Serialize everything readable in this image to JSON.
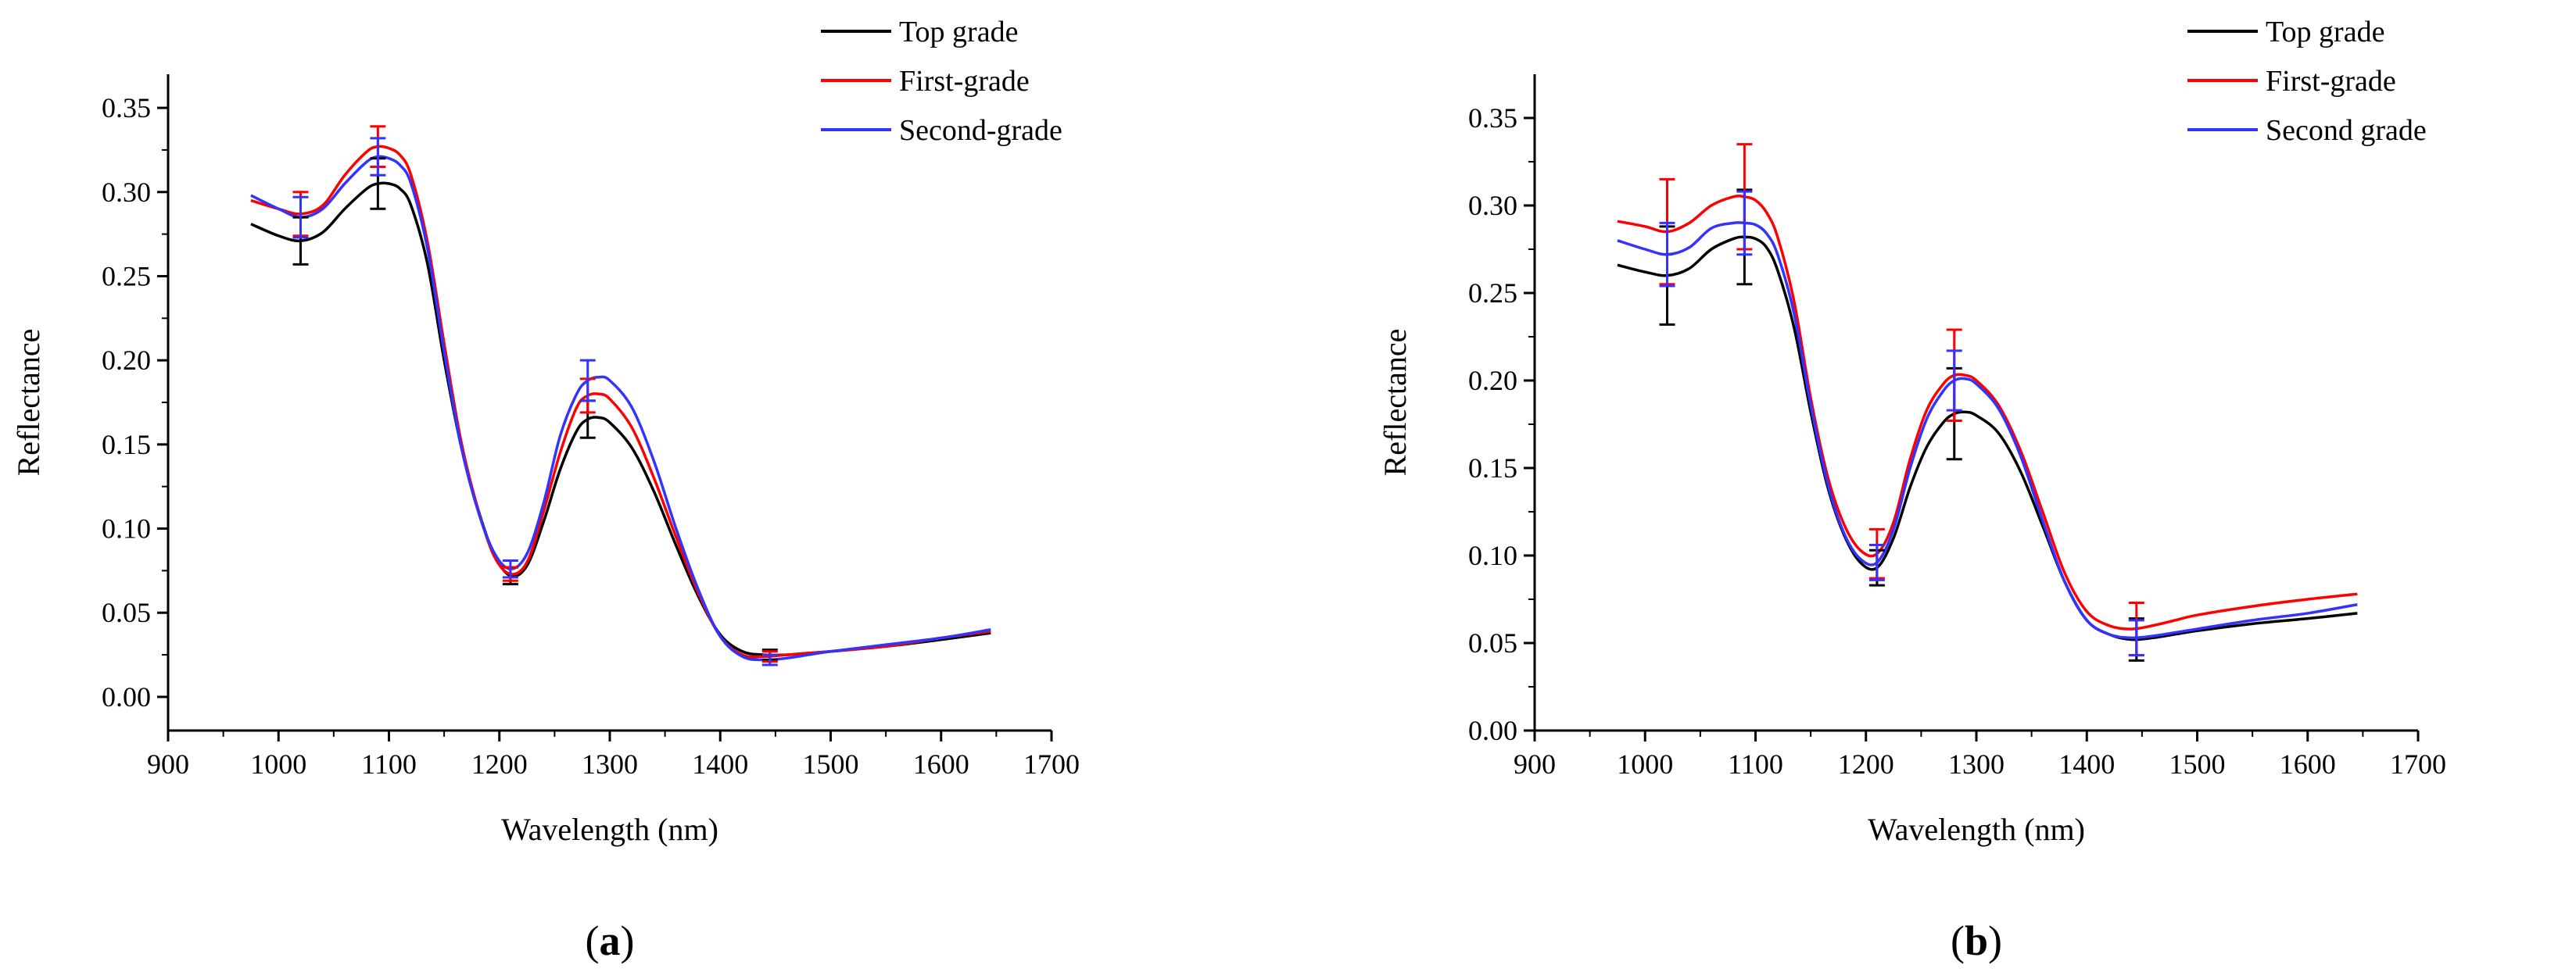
{
  "chart_data": [
    {
      "panel": "a",
      "type": "line",
      "panel_label": "(a)",
      "panel_label_letter": "a",
      "xlabel": "Wavelength (nm)",
      "ylabel": "Reflectance",
      "xlim": [
        900,
        1700
      ],
      "ylim": [
        -0.02,
        0.37
      ],
      "xticks": [
        900,
        1000,
        1100,
        1200,
        1300,
        1400,
        1500,
        1600,
        1700
      ],
      "xtick_labels": [
        "900",
        "1000",
        "1100",
        "1200",
        "1300",
        "1400",
        "1500",
        "1600",
        "1700"
      ],
      "yticks": [
        0.0,
        0.05,
        0.1,
        0.15,
        0.2,
        0.25,
        0.3,
        0.35
      ],
      "ytick_labels": [
        "0.00",
        "0.05",
        "0.10",
        "0.15",
        "0.20",
        "0.25",
        "0.30",
        "0.35"
      ],
      "legend_position": "top-right",
      "series": [
        {
          "name": "Top grade",
          "color": "#000000",
          "x": [
            975,
            1000,
            1020,
            1040,
            1060,
            1080,
            1090,
            1100,
            1110,
            1120,
            1135,
            1150,
            1165,
            1180,
            1195,
            1210,
            1225,
            1240,
            1255,
            1270,
            1280,
            1290,
            1300,
            1320,
            1340,
            1360,
            1380,
            1400,
            1420,
            1440,
            1460,
            1480,
            1500,
            1550,
            1600,
            1645
          ],
          "y": [
            0.281,
            0.274,
            0.271,
            0.276,
            0.29,
            0.302,
            0.305,
            0.305,
            0.302,
            0.292,
            0.257,
            0.2,
            0.15,
            0.113,
            0.085,
            0.072,
            0.078,
            0.104,
            0.135,
            0.158,
            0.165,
            0.166,
            0.163,
            0.148,
            0.122,
            0.09,
            0.06,
            0.037,
            0.027,
            0.025,
            0.025,
            0.026,
            0.027,
            0.03,
            0.034,
            0.038
          ],
          "error_bars": [
            {
              "x": 1020,
              "y": 0.271,
              "err": 0.014
            },
            {
              "x": 1090,
              "y": 0.305,
              "err": 0.015
            },
            {
              "x": 1210,
              "y": 0.072,
              "err": 0.005
            },
            {
              "x": 1280,
              "y": 0.165,
              "err": 0.011
            },
            {
              "x": 1445,
              "y": 0.025,
              "err": 0.003
            }
          ]
        },
        {
          "name": "First-grade",
          "color": "#ff0000",
          "x": [
            975,
            1000,
            1020,
            1040,
            1060,
            1080,
            1090,
            1100,
            1110,
            1120,
            1135,
            1150,
            1165,
            1180,
            1195,
            1210,
            1225,
            1240,
            1255,
            1270,
            1280,
            1290,
            1300,
            1320,
            1340,
            1360,
            1380,
            1400,
            1420,
            1440,
            1460,
            1480,
            1500,
            1550,
            1600,
            1645
          ],
          "y": [
            0.295,
            0.29,
            0.287,
            0.292,
            0.31,
            0.324,
            0.327,
            0.326,
            0.322,
            0.31,
            0.27,
            0.21,
            0.153,
            0.113,
            0.084,
            0.073,
            0.08,
            0.11,
            0.145,
            0.172,
            0.179,
            0.18,
            0.177,
            0.16,
            0.13,
            0.095,
            0.062,
            0.036,
            0.025,
            0.024,
            0.025,
            0.026,
            0.027,
            0.03,
            0.035,
            0.039
          ],
          "error_bars": [
            {
              "x": 1020,
              "y": 0.287,
              "err": 0.013
            },
            {
              "x": 1090,
              "y": 0.327,
              "err": 0.012
            },
            {
              "x": 1210,
              "y": 0.073,
              "err": 0.004
            },
            {
              "x": 1280,
              "y": 0.179,
              "err": 0.01
            },
            {
              "x": 1445,
              "y": 0.024,
              "err": 0.003
            }
          ]
        },
        {
          "name": "Second-grade",
          "color": "#3333ff",
          "x": [
            975,
            1000,
            1020,
            1040,
            1060,
            1080,
            1090,
            1100,
            1110,
            1120,
            1135,
            1150,
            1165,
            1180,
            1195,
            1210,
            1225,
            1240,
            1255,
            1270,
            1280,
            1290,
            1300,
            1320,
            1340,
            1360,
            1380,
            1400,
            1420,
            1440,
            1460,
            1480,
            1500,
            1550,
            1600,
            1645
          ],
          "y": [
            0.298,
            0.29,
            0.285,
            0.29,
            0.305,
            0.318,
            0.321,
            0.32,
            0.316,
            0.305,
            0.266,
            0.205,
            0.15,
            0.112,
            0.086,
            0.076,
            0.085,
            0.115,
            0.155,
            0.18,
            0.188,
            0.19,
            0.188,
            0.172,
            0.14,
            0.1,
            0.064,
            0.036,
            0.024,
            0.022,
            0.023,
            0.025,
            0.027,
            0.031,
            0.035,
            0.04
          ],
          "error_bars": [
            {
              "x": 1020,
              "y": 0.285,
              "err": 0.012
            },
            {
              "x": 1090,
              "y": 0.321,
              "err": 0.011
            },
            {
              "x": 1210,
              "y": 0.076,
              "err": 0.005
            },
            {
              "x": 1280,
              "y": 0.188,
              "err": 0.012
            },
            {
              "x": 1445,
              "y": 0.022,
              "err": 0.003
            }
          ]
        }
      ]
    },
    {
      "panel": "b",
      "type": "line",
      "panel_label": "(b)",
      "panel_label_letter": "b",
      "xlabel": "Wavelength (nm)",
      "ylabel": "Reflectance",
      "xlim": [
        900,
        1700
      ],
      "ylim": [
        0.0,
        0.375
      ],
      "xticks": [
        900,
        1000,
        1100,
        1200,
        1300,
        1400,
        1500,
        1600,
        1700
      ],
      "xtick_labels": [
        "900",
        "1000",
        "1100",
        "1200",
        "1300",
        "1400",
        "1500",
        "1600",
        "1700"
      ],
      "yticks": [
        0.0,
        0.05,
        0.1,
        0.15,
        0.2,
        0.25,
        0.3,
        0.35
      ],
      "ytick_labels": [
        "0.00",
        "0.05",
        "0.10",
        "0.15",
        "0.20",
        "0.25",
        "0.30",
        "0.35"
      ],
      "legend_position": "top-right",
      "series": [
        {
          "name": "Top grade",
          "color": "#000000",
          "x": [
            975,
            1000,
            1020,
            1040,
            1060,
            1080,
            1090,
            1100,
            1110,
            1120,
            1135,
            1150,
            1165,
            1180,
            1195,
            1210,
            1225,
            1240,
            1255,
            1270,
            1280,
            1290,
            1300,
            1320,
            1340,
            1360,
            1380,
            1400,
            1420,
            1440,
            1460,
            1480,
            1500,
            1550,
            1600,
            1645
          ],
          "y": [
            0.266,
            0.262,
            0.26,
            0.264,
            0.275,
            0.281,
            0.282,
            0.281,
            0.276,
            0.263,
            0.23,
            0.182,
            0.14,
            0.112,
            0.096,
            0.093,
            0.11,
            0.139,
            0.162,
            0.176,
            0.181,
            0.182,
            0.18,
            0.17,
            0.148,
            0.117,
            0.085,
            0.063,
            0.055,
            0.052,
            0.053,
            0.055,
            0.057,
            0.061,
            0.064,
            0.067
          ],
          "error_bars": [
            {
              "x": 1020,
              "y": 0.26,
              "err": 0.028
            },
            {
              "x": 1090,
              "y": 0.282,
              "err": 0.027
            },
            {
              "x": 1210,
              "y": 0.093,
              "err": 0.01
            },
            {
              "x": 1280,
              "y": 0.181,
              "err": 0.026
            },
            {
              "x": 1445,
              "y": 0.052,
              "err": 0.012
            }
          ]
        },
        {
          "name": "First-grade",
          "color": "#ff0000",
          "x": [
            975,
            1000,
            1020,
            1040,
            1060,
            1080,
            1090,
            1100,
            1110,
            1120,
            1135,
            1150,
            1165,
            1180,
            1195,
            1210,
            1225,
            1240,
            1255,
            1270,
            1280,
            1290,
            1300,
            1320,
            1340,
            1360,
            1380,
            1400,
            1420,
            1440,
            1460,
            1480,
            1500,
            1550,
            1600,
            1645
          ],
          "y": [
            0.291,
            0.288,
            0.285,
            0.29,
            0.3,
            0.305,
            0.305,
            0.303,
            0.296,
            0.282,
            0.245,
            0.19,
            0.146,
            0.118,
            0.103,
            0.101,
            0.119,
            0.155,
            0.183,
            0.198,
            0.203,
            0.203,
            0.2,
            0.186,
            0.16,
            0.125,
            0.09,
            0.068,
            0.06,
            0.058,
            0.06,
            0.063,
            0.066,
            0.071,
            0.075,
            0.078
          ],
          "error_bars": [
            {
              "x": 1020,
              "y": 0.285,
              "err": 0.03
            },
            {
              "x": 1090,
              "y": 0.305,
              "err": 0.03
            },
            {
              "x": 1210,
              "y": 0.101,
              "err": 0.014
            },
            {
              "x": 1280,
              "y": 0.203,
              "err": 0.026
            },
            {
              "x": 1445,
              "y": 0.058,
              "err": 0.015
            }
          ]
        },
        {
          "name": "Second grade",
          "color": "#3333ff",
          "x": [
            975,
            1000,
            1020,
            1040,
            1060,
            1080,
            1090,
            1100,
            1110,
            1120,
            1135,
            1150,
            1165,
            1180,
            1195,
            1210,
            1225,
            1240,
            1255,
            1270,
            1280,
            1290,
            1300,
            1320,
            1340,
            1360,
            1380,
            1400,
            1420,
            1440,
            1460,
            1480,
            1500,
            1550,
            1600,
            1645
          ],
          "y": [
            0.28,
            0.275,
            0.272,
            0.276,
            0.287,
            0.29,
            0.29,
            0.289,
            0.284,
            0.272,
            0.238,
            0.186,
            0.142,
            0.113,
            0.098,
            0.096,
            0.115,
            0.15,
            0.178,
            0.194,
            0.2,
            0.201,
            0.198,
            0.184,
            0.157,
            0.12,
            0.085,
            0.063,
            0.055,
            0.053,
            0.054,
            0.056,
            0.058,
            0.063,
            0.067,
            0.072
          ],
          "error_bars": [
            {
              "x": 1020,
              "y": 0.272,
              "err": 0.018
            },
            {
              "x": 1090,
              "y": 0.29,
              "err": 0.018
            },
            {
              "x": 1210,
              "y": 0.096,
              "err": 0.01
            },
            {
              "x": 1280,
              "y": 0.2,
              "err": 0.017
            },
            {
              "x": 1445,
              "y": 0.053,
              "err": 0.01
            }
          ]
        }
      ]
    }
  ]
}
